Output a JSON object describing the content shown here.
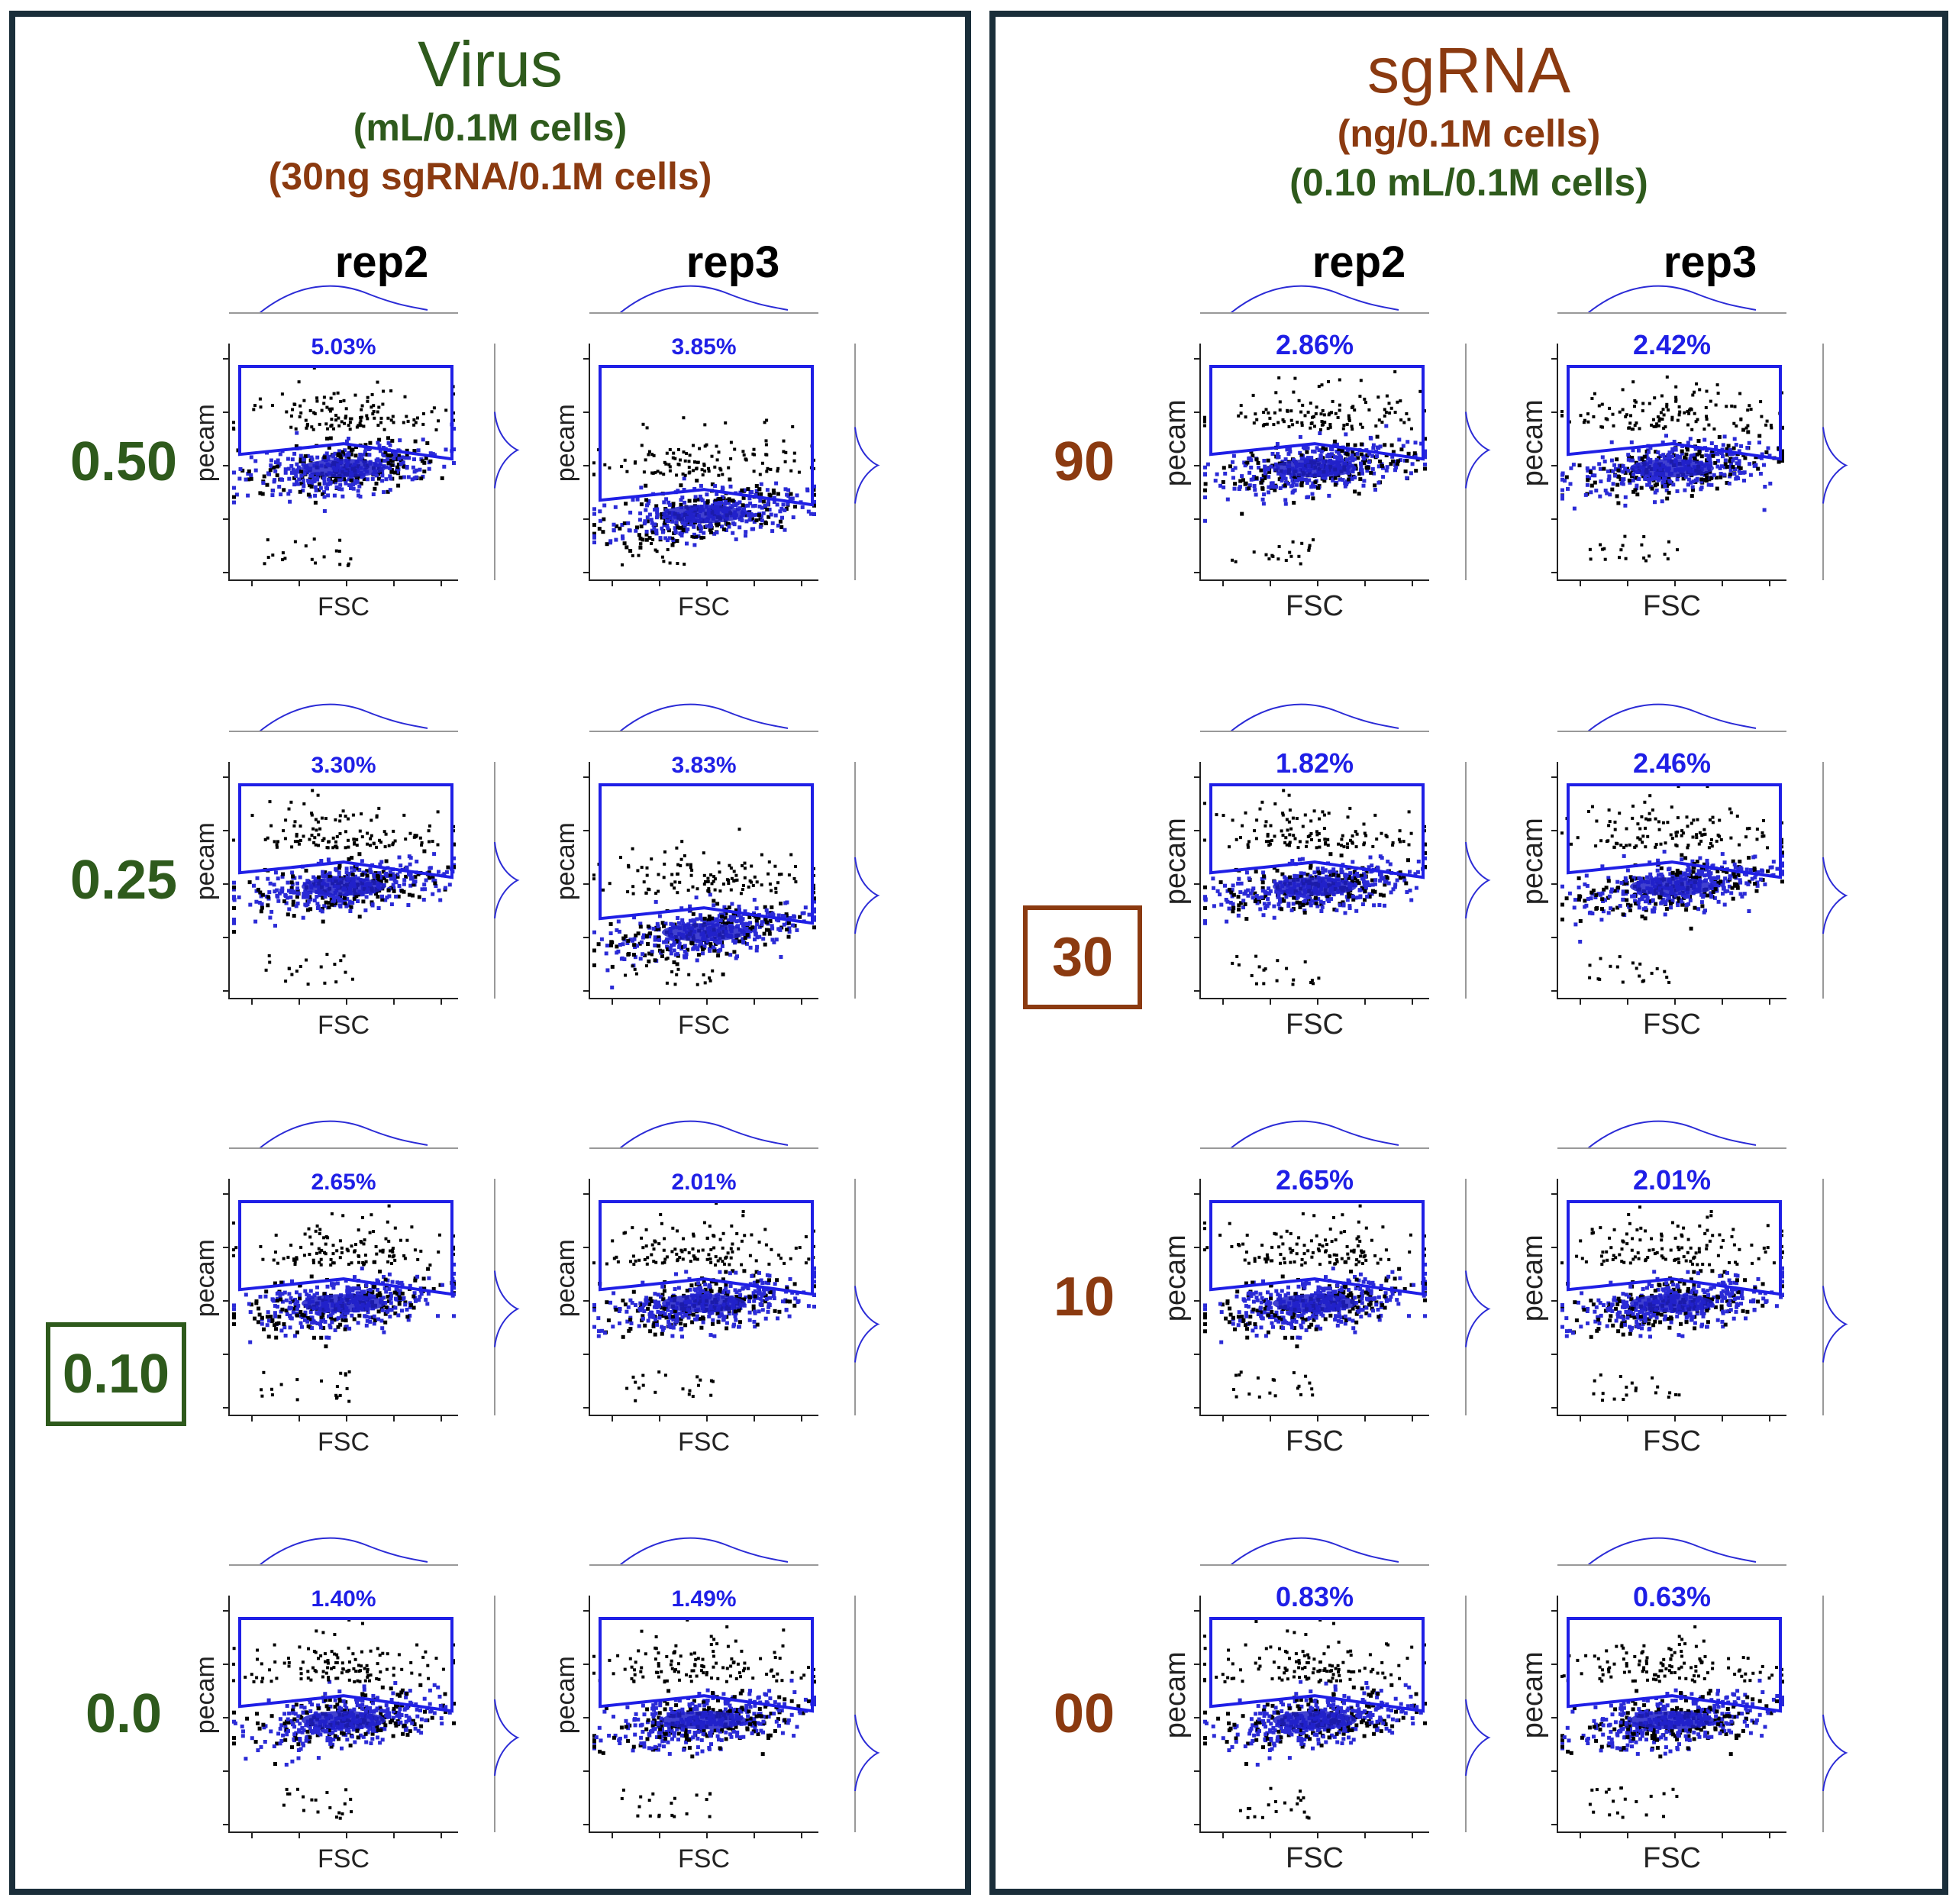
{
  "colors": {
    "virus_green": "#2e5a1c",
    "sgrna_brown": "#8b3a10",
    "gate_blue": "#1f1fe6",
    "density_blue": "#2b2bd6",
    "frame": "#1a2e3a"
  },
  "virus_panel": {
    "title": "Virus",
    "subtitle1": "(mL/0.1M cells)",
    "subtitle2": "(30ng sgRNA/0.1M cells)",
    "columns": [
      "rep2",
      "rep3"
    ],
    "rows": [
      {
        "label": "0.50",
        "boxed": false
      },
      {
        "label": "0.25",
        "boxed": false
      },
      {
        "label": "0.10",
        "boxed": true
      },
      {
        "label": "0.0",
        "boxed": false
      }
    ]
  },
  "sgrna_panel": {
    "title": "sgRNA",
    "subtitle1": "(ng/0.1M cells)",
    "subtitle2": "(0.10 mL/0.1M cells)",
    "columns": [
      "rep2",
      "rep3"
    ],
    "rows": [
      {
        "label": "90",
        "boxed": false
      },
      {
        "label": "30",
        "boxed": true
      },
      {
        "label": "10",
        "boxed": false
      },
      {
        "label": "00",
        "boxed": false
      }
    ]
  },
  "chart_data": [
    {
      "type": "scatter",
      "panel": "Virus",
      "xlabel": "FSC",
      "ylabel": "pecam",
      "series": [
        {
          "name": "rep2",
          "values": [
            5.03,
            3.3,
            2.65,
            1.4
          ]
        },
        {
          "name": "rep3",
          "values": [
            3.85,
            3.83,
            2.01,
            1.49
          ]
        }
      ],
      "categories": [
        "0.50",
        "0.25",
        "0.10",
        "0.0"
      ],
      "gate_labels": [
        [
          "5.03%",
          "3.85%"
        ],
        [
          "3.30%",
          "3.83%"
        ],
        [
          "2.65%",
          "2.01%"
        ],
        [
          "1.40%",
          "1.49%"
        ]
      ]
    },
    {
      "type": "scatter",
      "panel": "sgRNA",
      "xlabel": "FSC",
      "ylabel": "pecam",
      "series": [
        {
          "name": "rep2",
          "values": [
            2.86,
            1.82,
            2.65,
            0.83
          ]
        },
        {
          "name": "rep3",
          "values": [
            2.42,
            2.46,
            2.01,
            0.63
          ]
        }
      ],
      "categories": [
        "90",
        "30",
        "10",
        "00"
      ],
      "gate_labels": [
        [
          "2.86%",
          "2.42%"
        ],
        [
          "1.82%",
          "2.46%"
        ],
        [
          "2.65%",
          "2.01%"
        ],
        [
          "0.83%",
          "0.63%"
        ]
      ]
    }
  ]
}
